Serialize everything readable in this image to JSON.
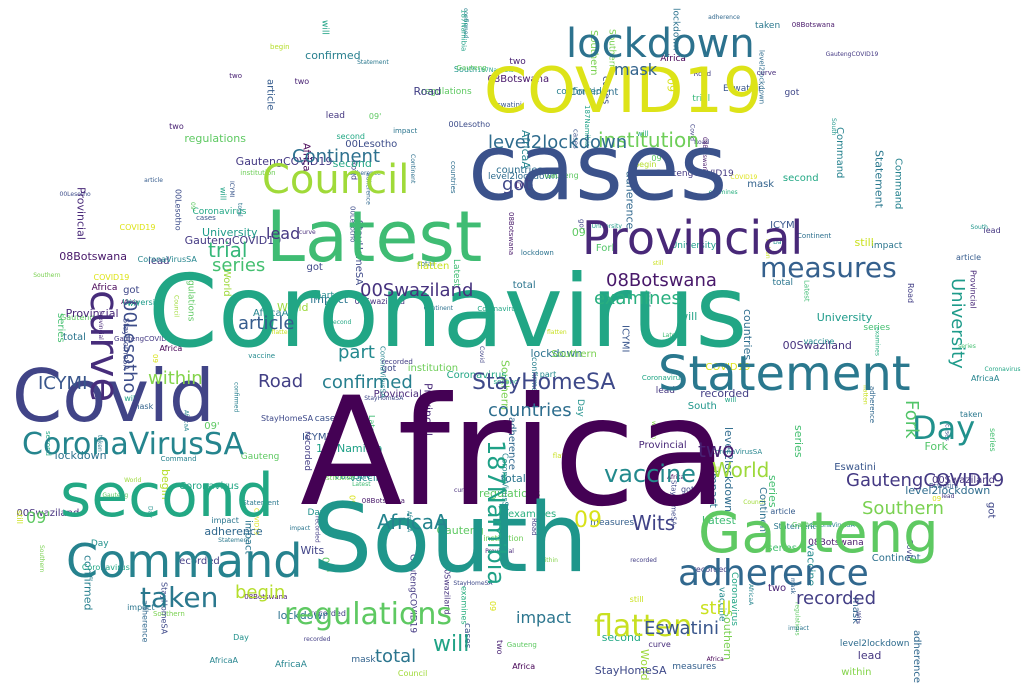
{
  "words": [
    {
      "text": "Africa",
      "color": "#440154"
    },
    {
      "text": "Coronavirus",
      "color": "#21a685"
    },
    {
      "text": "South",
      "color": "#1f968b"
    },
    {
      "text": "cases",
      "color": "#3b528b"
    },
    {
      "text": "Covid",
      "color": "#414487"
    },
    {
      "text": "Latest",
      "color": "#3fbc73"
    },
    {
      "text": "COVID19",
      "color": "#dde318"
    },
    {
      "text": "second",
      "color": "#22a884"
    },
    {
      "text": "Statement",
      "color": "#2a788e"
    },
    {
      "text": "Gauteng",
      "color": "#5ec962"
    },
    {
      "text": "Command",
      "color": "#26828e"
    },
    {
      "text": "Provincial",
      "color": "#482878"
    },
    {
      "text": "lockdown",
      "color": "#2c728e"
    },
    {
      "text": "Council",
      "color": "#a0da39"
    },
    {
      "text": "adherence",
      "color": "#31688e"
    },
    {
      "text": "CoronaVirusSA",
      "color": "#25858e"
    },
    {
      "text": "regulations",
      "color": "#5ec962"
    },
    {
      "text": "flatten",
      "color": "#c8e020"
    },
    {
      "text": "measures",
      "color": "#35608d"
    },
    {
      "text": "curve",
      "color": "#472d7b"
    },
    {
      "text": "taken",
      "color": "#2a788e"
    },
    {
      "text": "Day",
      "color": "#21918c"
    },
    {
      "text": "institution",
      "color": "#6ece58"
    },
    {
      "text": "Continent",
      "color": "#2d708e"
    },
    {
      "text": "level2lockdown",
      "color": "#2f6c8e"
    },
    {
      "text": "GautengCOVID19",
      "color": "#443983"
    },
    {
      "text": "StayHomeSA",
      "color": "#3e4989"
    },
    {
      "text": "00Swaziland",
      "color": "#46327e"
    },
    {
      "text": "08Botswana",
      "color": "#48186a"
    },
    {
      "text": "00Lesotho",
      "color": "#3d4d8a"
    },
    {
      "text": "187Namibia",
      "color": "#1fa187"
    },
    {
      "text": "University",
      "color": "#1e9b8a"
    },
    {
      "text": "Southern",
      "color": "#7ad151"
    },
    {
      "text": "countries",
      "color": "#2e6e8e"
    },
    {
      "text": "vaccine",
      "color": "#238a8d"
    },
    {
      "text": "examines",
      "color": "#29af7f"
    },
    {
      "text": "recorded",
      "color": "#433e85"
    },
    {
      "text": "confirmed",
      "color": "#277f8e"
    },
    {
      "text": "Eswatini",
      "color": "#39568c"
    },
    {
      "text": "AfricaA",
      "color": "#25848e"
    },
    {
      "text": "impact",
      "color": "#2b758e"
    },
    {
      "text": "World",
      "color": "#9dd93b"
    },
    {
      "text": "article",
      "color": "#365c8d"
    },
    {
      "text": "ICYMI",
      "color": "#39568c"
    },
    {
      "text": "Road",
      "color": "#423f85"
    },
    {
      "text": "Wits",
      "color": "#404387"
    },
    {
      "text": "Fork",
      "color": "#52c569"
    },
    {
      "text": "begin",
      "color": "#b5de2b"
    },
    {
      "text": "total",
      "color": "#2b758e"
    },
    {
      "text": "mask",
      "color": "#33638d"
    },
    {
      "text": "series",
      "color": "#44bf70"
    },
    {
      "text": "within",
      "color": "#84d44b"
    },
    {
      "text": "trial",
      "color": "#35b779"
    },
    {
      "text": "two",
      "color": "#482173"
    },
    {
      "text": "part",
      "color": "#23898e"
    },
    {
      "text": "got",
      "color": "#3f4788"
    },
    {
      "text": "lead",
      "color": "#453781"
    },
    {
      "text": "still",
      "color": "#cae11f"
    },
    {
      "text": "will",
      "color": "#20a386"
    },
    {
      "text": "09",
      "color": "#d8e219"
    },
    {
      "text": "09'",
      "color": "#5ec962"
    }
  ]
}
